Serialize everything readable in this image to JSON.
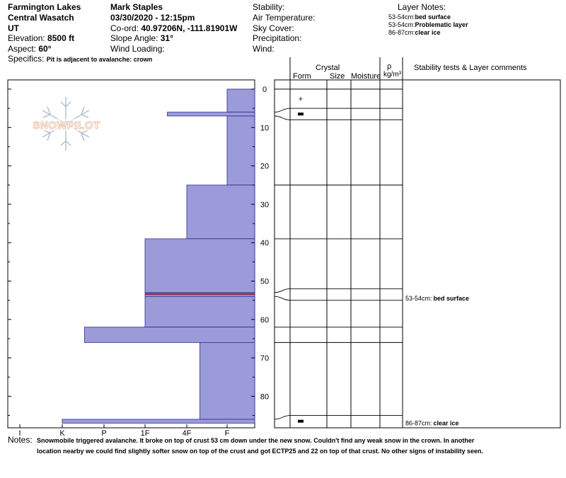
{
  "header": {
    "location": "Farmington Lakes",
    "range": "Central Wasatch",
    "state": "UT",
    "elevation_label": "Elevation:",
    "elevation_value": "8500 ft",
    "aspect_label": "Aspect:",
    "aspect_value": "60°",
    "specifics_label": "Specifics:",
    "specifics_value": "Pit is adjacent to avalanche: crown",
    "observer": "Mark Staples",
    "datetime": "03/30/2020 - 12:15pm",
    "coord_label": "Co-ord:",
    "coord_value": "40.97206N, -111.81901W",
    "slope_label": "Slope Angle:",
    "slope_value": "31°",
    "wind_loading_label": "Wind Loading:",
    "stability_label": "Stability:",
    "air_temp_label": "Air Temperature:",
    "sky_cover_label": "Sky Cover:",
    "precip_label": "Precipitation:",
    "wind_label": "Wind:",
    "layer_notes_title": "Layer Notes:",
    "layer_notes": [
      {
        "range": "53-54cm:",
        "text": "bed surface"
      },
      {
        "range": "53-54cm:",
        "text": "Problematic layer"
      },
      {
        "range": "86-87cm:",
        "text": "clear ice"
      }
    ]
  },
  "logo": {
    "text": "SNOWPILOT",
    "color": "#f0c8b0"
  },
  "columns": {
    "crystal": "Crystal",
    "form": "Form",
    "size": "Size",
    "moisture": "Moisture",
    "rho": "ρ",
    "density_unit": "kg/m³",
    "stability": "Stability tests & Layer comments"
  },
  "notes": {
    "label": "Notes:",
    "line1": "Snowmobile triggered avalanche. It broke on top of crust 53 cm down under the new snow. Couldn't find any weak snow in the crown. In another",
    "line2": "location nearby we could find slightly softer snow on top of the crust and got ECTP25 and 22 on top of that crust. No other signs of instability seen."
  },
  "colors": {
    "hardness_fill": "#9b9bda",
    "hardness_stroke": "#2b2b8c",
    "problem_layer": "#8b1a3a"
  },
  "chart_data": {
    "type": "bar",
    "orientation": "horizontal",
    "x_axis_labels": [
      "I",
      "K",
      "P",
      "1F",
      "4F",
      "F"
    ],
    "y_ticks": [
      0,
      10,
      20,
      30,
      40,
      50,
      60,
      70,
      80
    ],
    "y_range_cm": [
      -2,
      87
    ],
    "y_inverted": true,
    "hardness_profile": [
      {
        "top": 0,
        "bottom": 6,
        "hardness": "F"
      },
      {
        "top": 6,
        "bottom": 7,
        "hardness": "4F+"
      },
      {
        "top": 7,
        "bottom": 25,
        "hardness": "F"
      },
      {
        "top": 25,
        "bottom": 39,
        "hardness": "4F"
      },
      {
        "top": 39,
        "bottom": 53,
        "hardness": "1F"
      },
      {
        "top": 53,
        "bottom": 54,
        "hardness": "1F",
        "problem": true
      },
      {
        "top": 54,
        "bottom": 62,
        "hardness": "1F"
      },
      {
        "top": 62,
        "bottom": 66,
        "hardness": "P+"
      },
      {
        "top": 66,
        "bottom": 86,
        "hardness": "4F-"
      },
      {
        "top": 86,
        "bottom": 87,
        "hardness": "K"
      }
    ],
    "layer_boundaries": [
      0,
      5,
      8,
      25,
      39,
      52,
      55,
      62,
      66,
      85
    ],
    "grain_forms": [
      {
        "depth": 2.5,
        "symbol": "+"
      },
      {
        "depth": 6.5,
        "symbol": "▬"
      },
      {
        "depth": 86.5,
        "symbol": "▬"
      }
    ],
    "layer_comments": [
      {
        "depth": 54.5,
        "range": "53-54cm:",
        "text": "bed surface"
      },
      {
        "depth": 87,
        "range": "86-87cm:",
        "text": "clear ice"
      }
    ]
  }
}
